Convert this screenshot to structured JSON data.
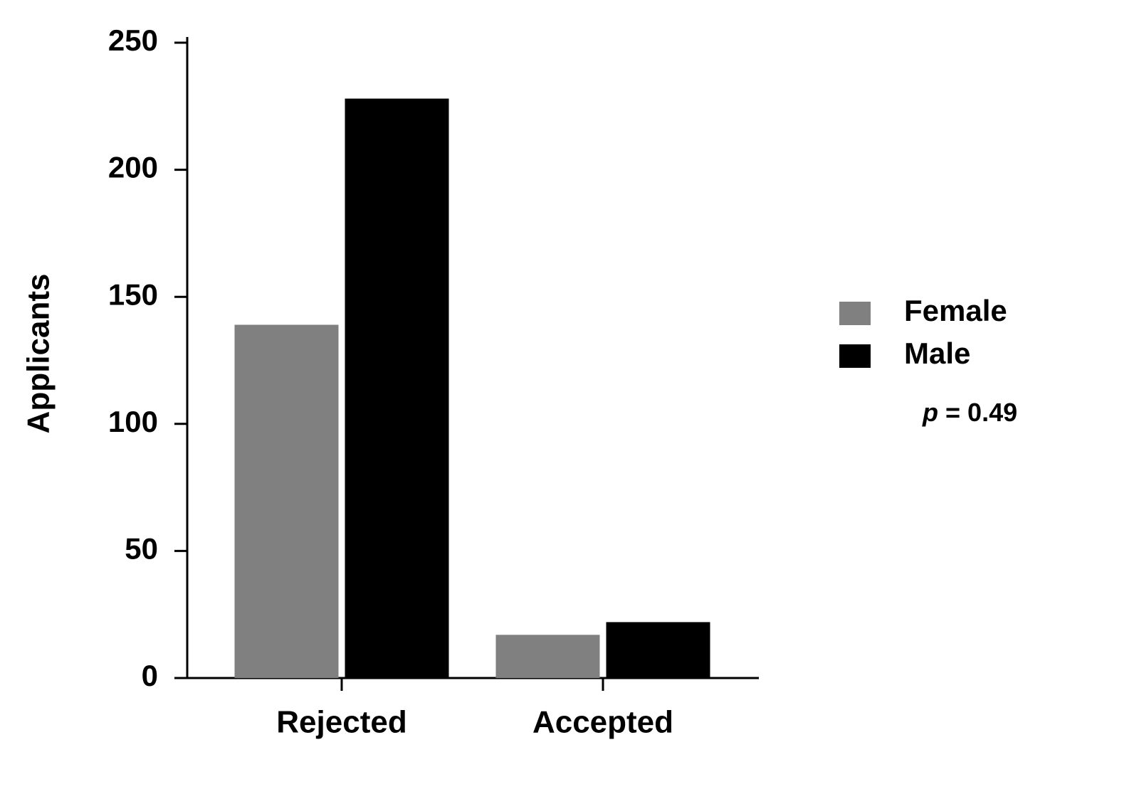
{
  "chart_data": {
    "type": "bar",
    "y_label": "Applicants",
    "categories": [
      "Rejected",
      "Accepted"
    ],
    "series": [
      {
        "name": "Female",
        "color": "#808080",
        "values": [
          139,
          17
        ]
      },
      {
        "name": "Male",
        "color": "#000000",
        "values": [
          228,
          22
        ]
      }
    ],
    "ylim": [
      0,
      250
    ],
    "yticks": [
      0,
      50,
      100,
      150,
      200,
      250
    ],
    "legend": "right",
    "annotation": {
      "symbol": "p",
      "text": "= 0.49"
    }
  }
}
